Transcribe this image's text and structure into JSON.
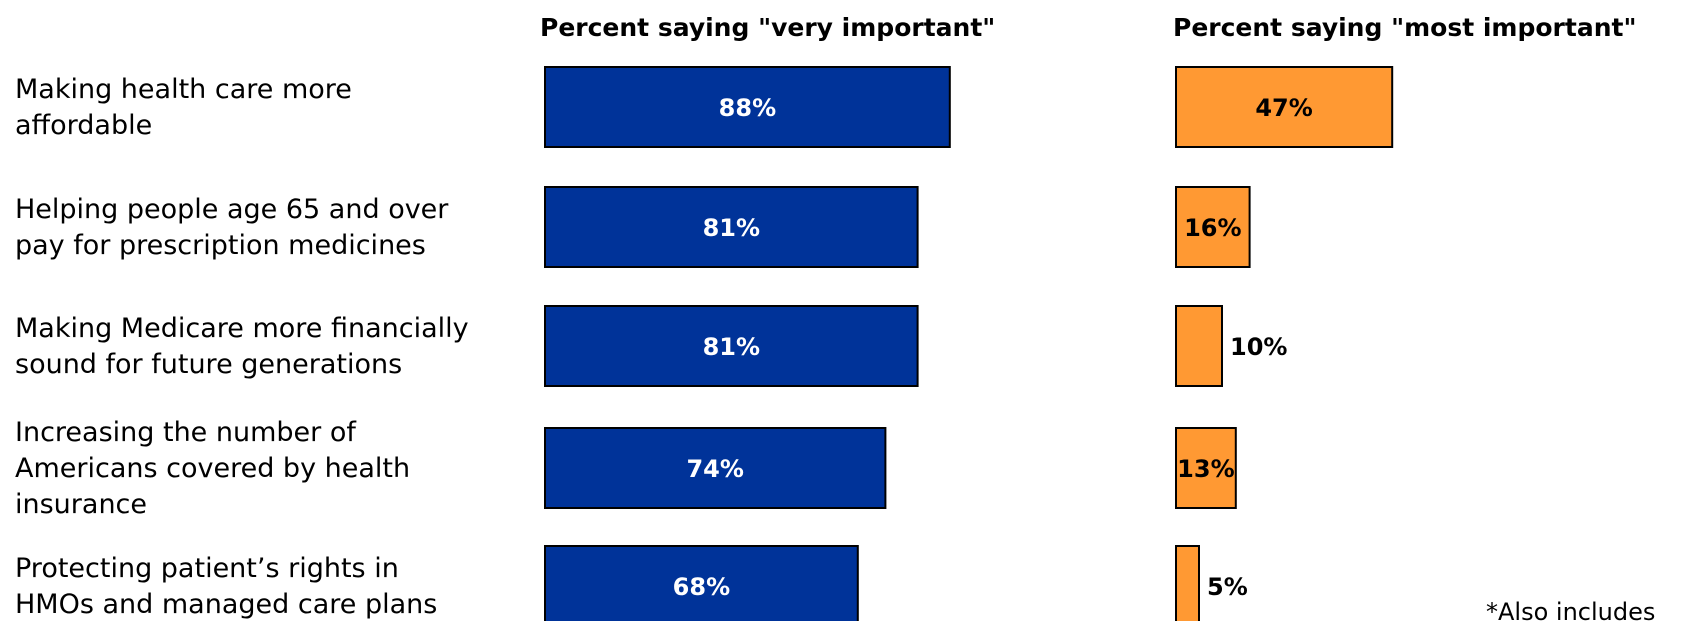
{
  "chart_data": {
    "type": "bar",
    "orientation": "horizontal",
    "categories": [
      [
        "Making health care more",
        "affordable"
      ],
      [
        "Helping people age 65 and over",
        "pay for prescription medicines"
      ],
      [
        "Making Medicare more financially",
        "sound for future generations"
      ],
      [
        "Increasing the number of",
        "Americans covered by health",
        "insurance"
      ],
      [
        "Protecting patient’s rights in",
        "HMOs and managed care plans"
      ]
    ],
    "series": [
      {
        "name": "Percent saying \"very important\"",
        "values": [
          88,
          81,
          81,
          74,
          68
        ],
        "labels": [
          "88%",
          "81%",
          "81%",
          "74%",
          "68%"
        ],
        "color": "#003399",
        "label_color": "#ffffff"
      },
      {
        "name": "Percent saying \"most important\"",
        "values": [
          47,
          16,
          10,
          13,
          5
        ],
        "labels": [
          "47%",
          "16%",
          "10%",
          "13%",
          "5%"
        ],
        "color": "#ff9933",
        "label_color": "#000000"
      }
    ],
    "footnote": "*Also includes",
    "legend": "none",
    "grid": false
  }
}
